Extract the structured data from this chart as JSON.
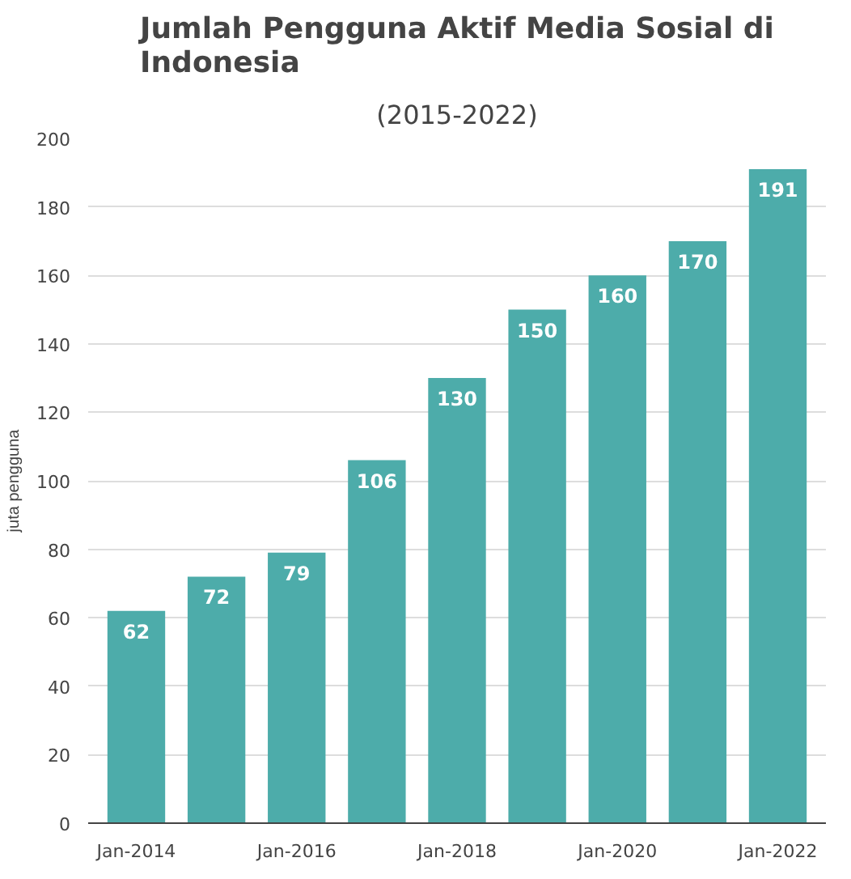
{
  "chart_data": {
    "type": "bar",
    "title": "Jumlah Pengguna Aktif Media Sosial di Indonesia",
    "subtitle": "(2015-2022)",
    "ylabel": "juta pengguna",
    "categories": [
      "Jan-2014",
      null,
      "Jan-2016",
      null,
      "Jan-2018",
      null,
      "Jan-2020",
      null,
      "Jan-2022"
    ],
    "values": [
      62,
      72,
      79,
      106,
      130,
      150,
      160,
      170,
      191
    ],
    "color": "#4dacaa",
    "ylim": [
      0,
      200
    ],
    "yticks": [
      0,
      20,
      40,
      60,
      80,
      100,
      120,
      140,
      160,
      180,
      200
    ],
    "grid": "y",
    "data_labels": true
  }
}
